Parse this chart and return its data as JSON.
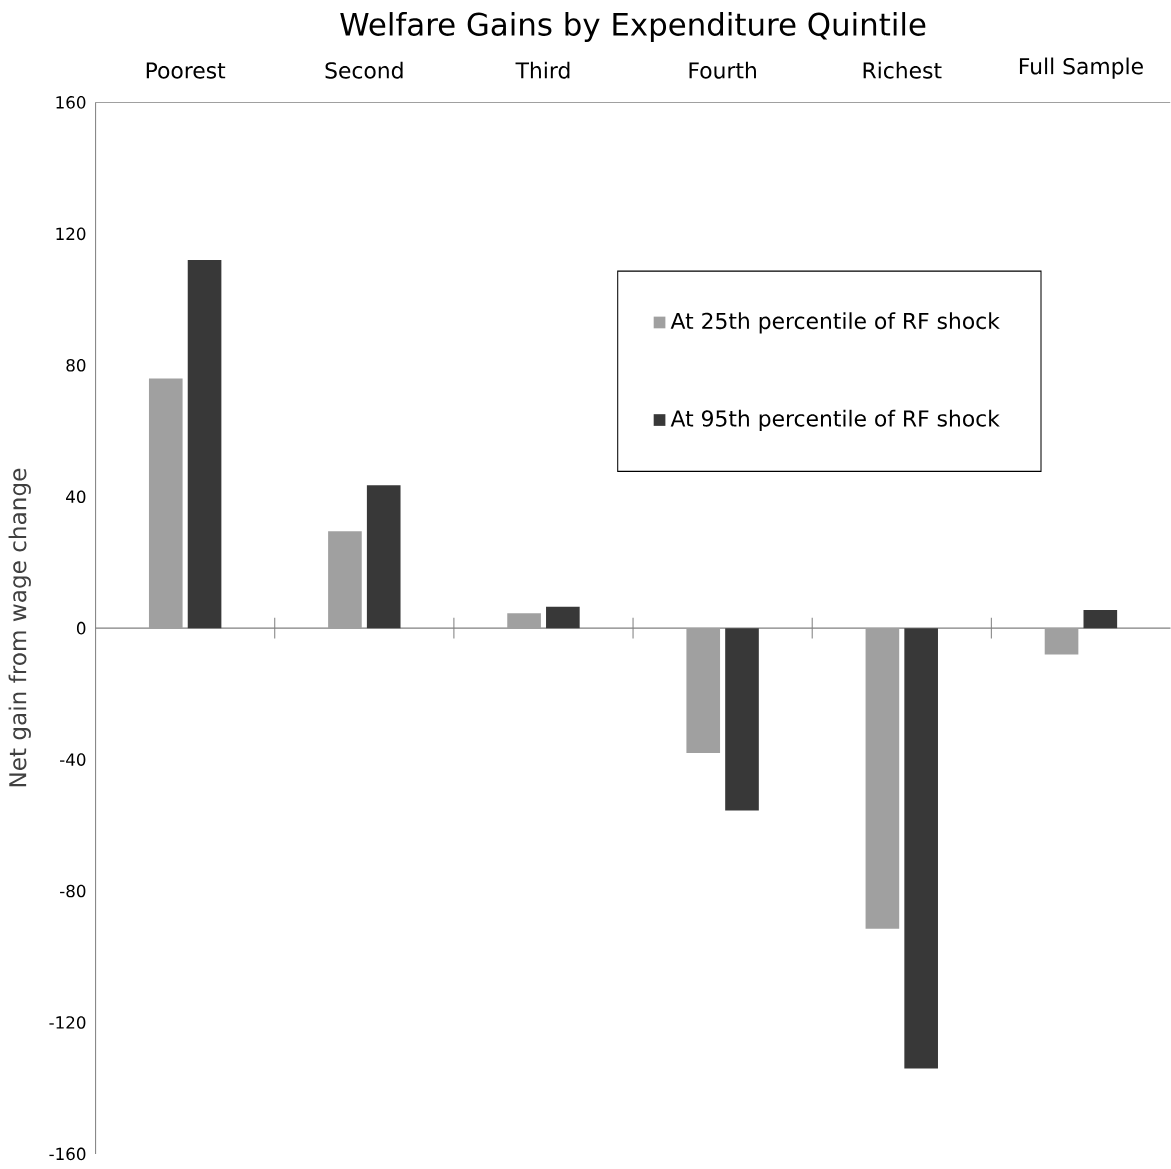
{
  "chart_data": {
    "type": "bar",
    "title": "Welfare Gains by Expenditure Quintile",
    "categories": [
      "Poorest",
      "Second",
      "Third",
      "Fourth",
      "Richest",
      "Full Sample"
    ],
    "series": [
      {
        "name": "At 25th percentile of RF shock",
        "color": "#a0a0a0",
        "values": [
          76,
          29.5,
          4.5,
          -38,
          -91.5,
          -8
        ]
      },
      {
        "name": "At 95th percentile of RF shock",
        "color": "#383838",
        "values": [
          112,
          43.5,
          6.5,
          -55.5,
          -134,
          5.5
        ]
      }
    ],
    "ylabel": "Net gain from wage change",
    "ylim": [
      -160,
      160
    ],
    "yticks": [
      -160,
      -120,
      -80,
      -40,
      0,
      40,
      80,
      120,
      160
    ],
    "legend": "top right"
  }
}
